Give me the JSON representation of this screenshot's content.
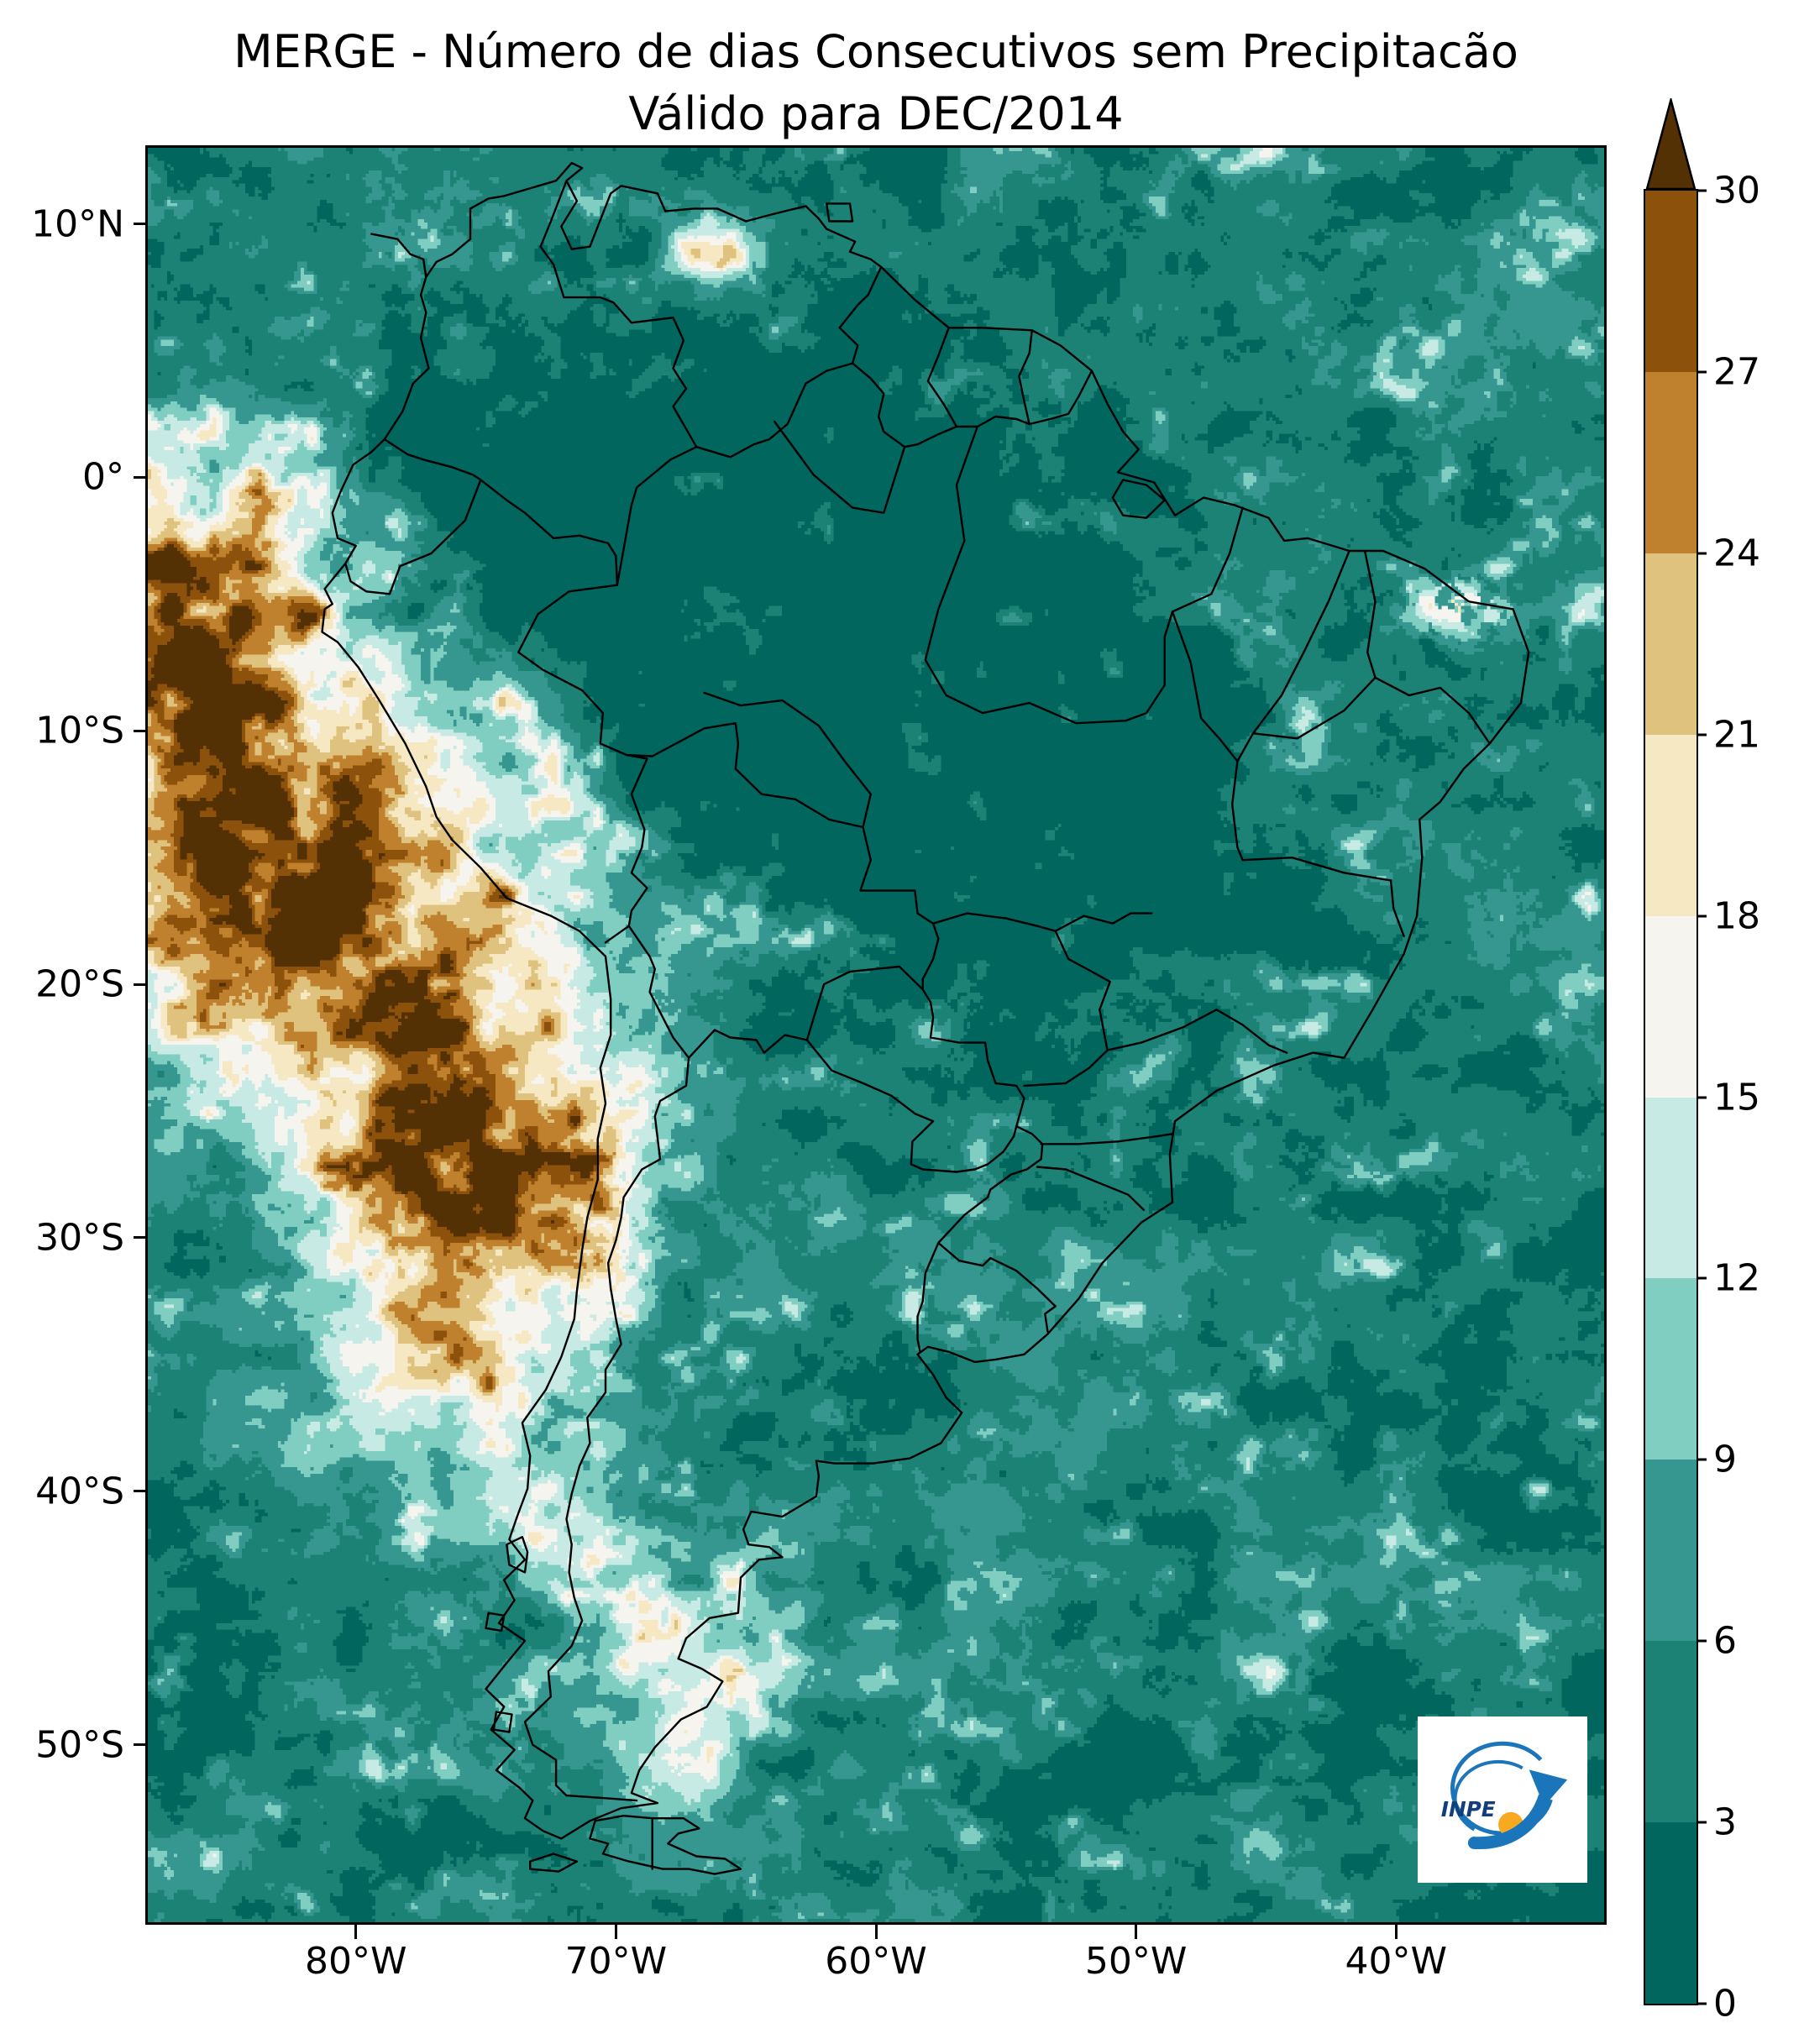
{
  "title": {
    "line1": "MERGE - Número de dias Consecutivos sem Precipitacão",
    "line2": "Válido para DEC/2014"
  },
  "axes": {
    "y_ticks": [
      {
        "label": "10°N",
        "lat": 10
      },
      {
        "label": "0°",
        "lat": 0
      },
      {
        "label": "10°S",
        "lat": -10
      },
      {
        "label": "20°S",
        "lat": -20
      },
      {
        "label": "30°S",
        "lat": -30
      },
      {
        "label": "40°S",
        "lat": -40
      },
      {
        "label": "50°S",
        "lat": -50
      }
    ],
    "x_ticks": [
      {
        "label": "80°W",
        "lon": -80
      },
      {
        "label": "70°W",
        "lon": -70
      },
      {
        "label": "60°W",
        "lon": -60
      },
      {
        "label": "50°W",
        "lon": -50
      },
      {
        "label": "40°W",
        "lon": -40
      }
    ]
  },
  "colorbar": {
    "levels": [
      0,
      3,
      6,
      9,
      12,
      15,
      18,
      21,
      24,
      27,
      30
    ],
    "tick_labels": [
      "0",
      "3",
      "6",
      "9",
      "12",
      "15",
      "18",
      "21",
      "24",
      "27",
      "30"
    ],
    "band_colors": [
      "#01665e",
      "#1d8276",
      "#35978f",
      "#80cdc1",
      "#c7eae5",
      "#f5f4ef",
      "#f6e8c3",
      "#dfc27d",
      "#bf812d",
      "#8c510a"
    ],
    "extend_color": "#543005"
  },
  "logo": {
    "label": "INPE",
    "brand_blue": "#1b75bb",
    "brand_dark_blue": "#123f7c",
    "brand_orange": "#f7a921"
  },
  "chart_data": {
    "type": "heatmap",
    "title": "MERGE - Número de dias Consecutivos sem Precipitacão",
    "subtitle": "Válido para DEC/2014",
    "variable": "Número de dias consecutivos sem precipitação",
    "units": "dias",
    "region": "South America and adjacent oceans",
    "lon_extent_deg": [
      -88,
      -32
    ],
    "lat_extent_deg": [
      -57,
      13
    ],
    "x_tick_labels": [
      "80°W",
      "70°W",
      "60°W",
      "50°W",
      "40°W"
    ],
    "y_tick_labels": [
      "10°N",
      "0°",
      "10°S",
      "20°S",
      "30°S",
      "40°S",
      "50°S"
    ],
    "levels": [
      0,
      3,
      6,
      9,
      12,
      15,
      18,
      21,
      24,
      27,
      30
    ],
    "extend": "max",
    "palette_low_to_high": [
      "#01665e",
      "#1d8276",
      "#35978f",
      "#80cdc1",
      "#c7eae5",
      "#f5f4ef",
      "#f6e8c3",
      "#dfc27d",
      "#bf812d",
      "#8c510a"
    ],
    "extend_color": "#543005",
    "colorbar_position": "right",
    "grid": false,
    "observed_patterns": [
      {
        "region": "Amazon basin and north-central Brazil",
        "value_days": "0-6 (darkest teal)"
      },
      {
        "region": "Southeast Pacific off Peru and northern Chile including Atacama coast",
        "value_days": "21-30+ (browns, core exceeds 30)"
      },
      {
        "region": "Transition ring around the dry Pacific core",
        "value_days": "12-21 (cream and tan patches)"
      },
      {
        "region": "Most ocean areas, Argentina, Uruguay and SE Brazil",
        "value_days": "3-12 (teals with lighter patches)"
      },
      {
        "region": "Eastern Patagonia and south-central Chile coast",
        "value_days": "9-18 (pale cyan to cream patches)"
      },
      {
        "region": "Isolated dry spots near the Venezuelan coast (~66°W, 9°N) and NE Brazil (~38°W, 5°S)",
        "value_days": "18-27"
      }
    ]
  }
}
